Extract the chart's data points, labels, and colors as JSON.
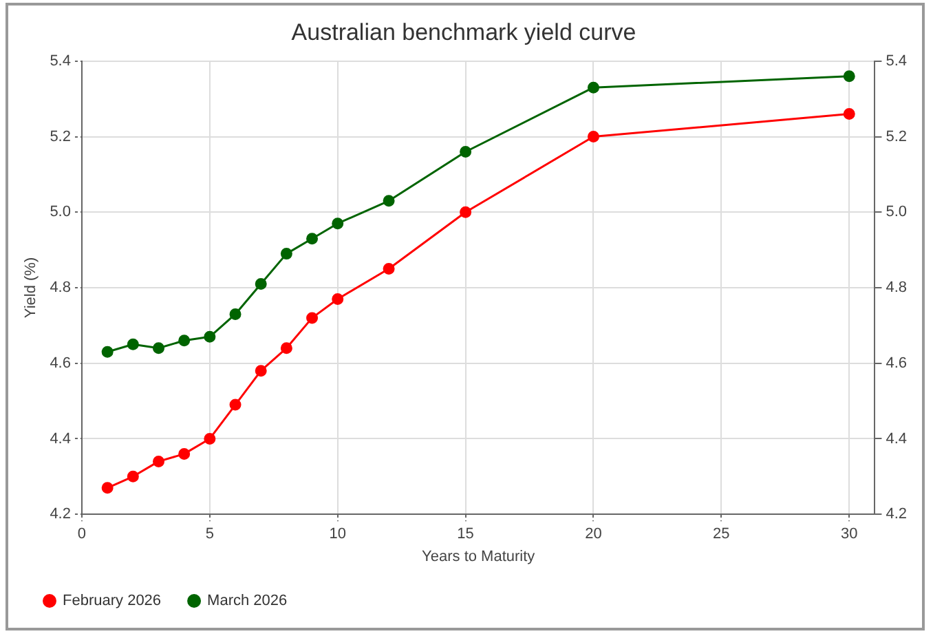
{
  "chart_data": {
    "type": "line",
    "title": "Australian benchmark yield curve",
    "xlabel": "Years to Maturity",
    "ylabel": "Yield (%)",
    "x": [
      1,
      2,
      3,
      4,
      5,
      6,
      7,
      8,
      9,
      10,
      12,
      15,
      20,
      30
    ],
    "series": [
      {
        "name": "February 2026",
        "color": "#ff0000",
        "values": [
          4.27,
          4.3,
          4.34,
          4.36,
          4.4,
          4.49,
          4.58,
          4.64,
          4.72,
          4.77,
          4.85,
          5.0,
          5.2,
          5.26
        ]
      },
      {
        "name": "March 2026",
        "color": "#006400",
        "values": [
          4.63,
          4.65,
          4.64,
          4.66,
          4.67,
          4.73,
          4.81,
          4.89,
          4.93,
          4.97,
          5.03,
          5.16,
          5.33,
          5.36
        ]
      }
    ],
    "xlim": [
      0,
      31
    ],
    "xticks": [
      0,
      5,
      10,
      15,
      20,
      25,
      30
    ],
    "ylim": [
      4.2,
      5.4
    ],
    "yticks": [
      4.2,
      4.4,
      4.6,
      4.8,
      {
        "value": 5,
        "label": "5.0"
      },
      5.2,
      5.4
    ],
    "y2lim": [
      4.2,
      5.4
    ],
    "y2ticks": [
      4.2,
      4.4,
      4.6,
      4.8,
      {
        "value": 5,
        "label": "5.0"
      },
      5.2,
      5.4
    ],
    "grid": true,
    "legend": "bottom left",
    "marker": "circle",
    "line_style": "solid"
  }
}
